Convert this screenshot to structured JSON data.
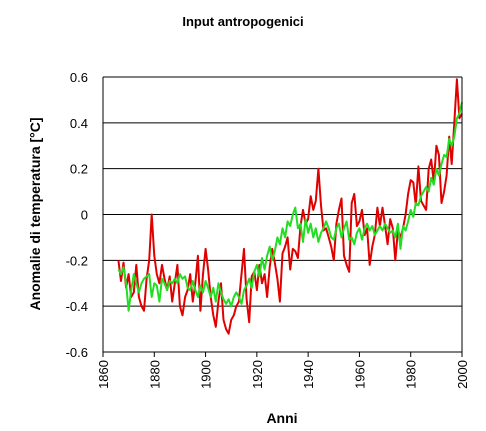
{
  "chart_data": {
    "type": "line",
    "title": "Input antropogenici",
    "xlabel": "Anni",
    "ylabel": "Anomalie di temperatura [°C]",
    "xlim": [
      1860,
      2000
    ],
    "ylim": [
      -0.6,
      0.6
    ],
    "xticks": [
      "1860",
      "1880",
      "1900",
      "1920",
      "1940",
      "1960",
      "1980",
      "2000"
    ],
    "yticks": [
      "0.6",
      "0.4",
      "0.2",
      "0",
      "-0.2",
      "-0.4",
      "-0.6"
    ],
    "grid": "horizontal",
    "legend": "none",
    "series": [
      {
        "color": "#e00000",
        "x": [
          1866,
          1867,
          1868,
          1869,
          1870,
          1871,
          1872,
          1873,
          1874,
          1875,
          1876,
          1877,
          1878,
          1879,
          1880,
          1881,
          1882,
          1883,
          1884,
          1885,
          1886,
          1887,
          1888,
          1889,
          1890,
          1891,
          1892,
          1893,
          1894,
          1895,
          1896,
          1897,
          1898,
          1899,
          1900,
          1901,
          1902,
          1903,
          1904,
          1905,
          1906,
          1907,
          1908,
          1909,
          1910,
          1911,
          1912,
          1913,
          1914,
          1915,
          1916,
          1917,
          1918,
          1919,
          1920,
          1921,
          1922,
          1923,
          1924,
          1925,
          1926,
          1927,
          1928,
          1929,
          1930,
          1931,
          1932,
          1933,
          1934,
          1935,
          1936,
          1937,
          1938,
          1939,
          1940,
          1941,
          1942,
          1943,
          1944,
          1945,
          1946,
          1947,
          1948,
          1949,
          1950,
          1951,
          1952,
          1953,
          1954,
          1955,
          1956,
          1957,
          1958,
          1959,
          1960,
          1961,
          1962,
          1963,
          1964,
          1965,
          1966,
          1967,
          1968,
          1969,
          1970,
          1971,
          1972,
          1973,
          1974,
          1975,
          1976,
          1977,
          1978,
          1979,
          1980,
          1981,
          1982,
          1983,
          1984,
          1985,
          1986,
          1987,
          1988,
          1989,
          1990,
          1991,
          1992,
          1993,
          1994,
          1995,
          1996,
          1997,
          1998,
          1999,
          2000
        ],
        "values": [
          -0.2,
          -0.29,
          -0.21,
          -0.32,
          -0.26,
          -0.36,
          -0.34,
          -0.22,
          -0.36,
          -0.4,
          -0.42,
          -0.28,
          -0.2,
          0.0,
          -0.18,
          -0.26,
          -0.3,
          -0.22,
          -0.28,
          -0.33,
          -0.27,
          -0.38,
          -0.3,
          -0.22,
          -0.4,
          -0.44,
          -0.36,
          -0.33,
          -0.26,
          -0.38,
          -0.3,
          -0.18,
          -0.42,
          -0.26,
          -0.15,
          -0.24,
          -0.36,
          -0.44,
          -0.49,
          -0.38,
          -0.3,
          -0.46,
          -0.5,
          -0.52,
          -0.46,
          -0.44,
          -0.4,
          -0.38,
          -0.26,
          -0.15,
          -0.37,
          -0.47,
          -0.27,
          -0.25,
          -0.33,
          -0.22,
          -0.3,
          -0.26,
          -0.36,
          -0.23,
          -0.15,
          -0.21,
          -0.28,
          -0.38,
          -0.17,
          -0.14,
          -0.1,
          -0.24,
          -0.15,
          -0.16,
          -0.19,
          -0.05,
          0.02,
          -0.04,
          -0.02,
          0.08,
          0.02,
          0.06,
          0.2,
          0.04,
          -0.07,
          -0.06,
          -0.1,
          -0.14,
          -0.2,
          -0.04,
          0.02,
          0.07,
          -0.18,
          -0.22,
          -0.25,
          0.05,
          0.09,
          -0.05,
          -0.03,
          0.02,
          -0.09,
          -0.06,
          -0.22,
          -0.14,
          -0.09,
          0.03,
          -0.05,
          0.03,
          -0.05,
          -0.13,
          -0.02,
          -0.06,
          -0.2,
          -0.07,
          -0.1,
          -0.06,
          0.0,
          0.09,
          0.15,
          0.14,
          0.04,
          0.21,
          0.06,
          0.04,
          0.02,
          0.2,
          0.24,
          0.14,
          0.3,
          0.26,
          0.05,
          0.1,
          0.17,
          0.34,
          0.22,
          0.4,
          0.59,
          0.42,
          0.44
        ]
      },
      {
        "color": "#22dd22",
        "x": [
          1866,
          1867,
          1868,
          1869,
          1870,
          1871,
          1872,
          1873,
          1874,
          1875,
          1876,
          1877,
          1878,
          1879,
          1880,
          1881,
          1882,
          1883,
          1884,
          1885,
          1886,
          1887,
          1888,
          1889,
          1890,
          1891,
          1892,
          1893,
          1894,
          1895,
          1896,
          1897,
          1898,
          1899,
          1900,
          1901,
          1902,
          1903,
          1904,
          1905,
          1906,
          1907,
          1908,
          1909,
          1910,
          1911,
          1912,
          1913,
          1914,
          1915,
          1916,
          1917,
          1918,
          1919,
          1920,
          1921,
          1922,
          1923,
          1924,
          1925,
          1926,
          1927,
          1928,
          1929,
          1930,
          1931,
          1932,
          1933,
          1934,
          1935,
          1936,
          1937,
          1938,
          1939,
          1940,
          1941,
          1942,
          1943,
          1944,
          1945,
          1946,
          1947,
          1948,
          1949,
          1950,
          1951,
          1952,
          1953,
          1954,
          1955,
          1956,
          1957,
          1958,
          1959,
          1960,
          1961,
          1962,
          1963,
          1964,
          1965,
          1966,
          1967,
          1968,
          1969,
          1970,
          1971,
          1972,
          1973,
          1974,
          1975,
          1976,
          1977,
          1978,
          1979,
          1980,
          1981,
          1982,
          1983,
          1984,
          1985,
          1986,
          1987,
          1988,
          1989,
          1990,
          1991,
          1992,
          1993,
          1994,
          1995,
          1996,
          1997,
          1998,
          1999,
          2000
        ],
        "values": [
          -0.24,
          -0.26,
          -0.23,
          -0.3,
          -0.42,
          -0.33,
          -0.26,
          -0.3,
          -0.34,
          -0.3,
          -0.28,
          -0.27,
          -0.26,
          -0.36,
          -0.3,
          -0.31,
          -0.38,
          -0.28,
          -0.3,
          -0.33,
          -0.29,
          -0.3,
          -0.28,
          -0.3,
          -0.26,
          -0.28,
          -0.27,
          -0.32,
          -0.33,
          -0.29,
          -0.33,
          -0.36,
          -0.31,
          -0.34,
          -0.29,
          -0.32,
          -0.36,
          -0.32,
          -0.38,
          -0.3,
          -0.34,
          -0.37,
          -0.39,
          -0.37,
          -0.4,
          -0.36,
          -0.34,
          -0.36,
          -0.39,
          -0.33,
          -0.31,
          -0.28,
          -0.32,
          -0.25,
          -0.22,
          -0.27,
          -0.19,
          -0.24,
          -0.18,
          -0.14,
          -0.2,
          -0.16,
          -0.1,
          -0.13,
          -0.06,
          -0.1,
          -0.03,
          -0.05,
          0.0,
          0.03,
          -0.06,
          -0.04,
          -0.12,
          -0.02,
          -0.08,
          -0.04,
          -0.1,
          -0.06,
          -0.12,
          -0.08,
          -0.06,
          -0.03,
          -0.06,
          -0.1,
          -0.11,
          -0.06,
          -0.04,
          -0.1,
          -0.06,
          -0.03,
          -0.11,
          -0.1,
          -0.13,
          -0.08,
          -0.06,
          -0.11,
          -0.06,
          -0.04,
          -0.07,
          -0.05,
          -0.09,
          -0.07,
          -0.05,
          -0.07,
          -0.04,
          -0.06,
          -0.08,
          -0.07,
          -0.1,
          -0.04,
          -0.15,
          -0.05,
          -0.07,
          -0.03,
          0.02,
          -0.01,
          0.05,
          0.04,
          0.08,
          0.1,
          0.12,
          0.1,
          0.16,
          0.13,
          0.2,
          0.17,
          0.22,
          0.26,
          0.25,
          0.33,
          0.3,
          0.34,
          0.42,
          0.44,
          0.49
        ]
      }
    ]
  }
}
